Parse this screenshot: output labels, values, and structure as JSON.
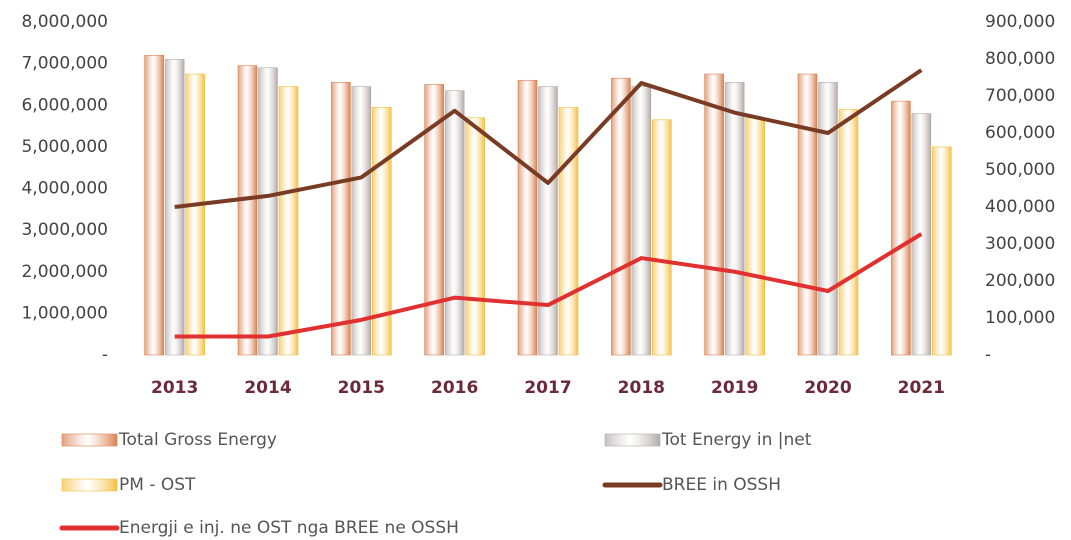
{
  "chart_data": {
    "type": "bar",
    "categories": [
      "2013",
      "2014",
      "2015",
      "2016",
      "2017",
      "2018",
      "2019",
      "2020",
      "2021"
    ],
    "series": [
      {
        "name": "Total Gross Energy",
        "color": "#d9804f",
        "values": [
          7200000,
          6950000,
          6550000,
          6500000,
          6600000,
          6650000,
          6750000,
          6750000,
          6100000
        ]
      },
      {
        "name": "Tot Energy in |net",
        "color": "#b3aaa8",
        "values": [
          7100000,
          6900000,
          6450000,
          6350000,
          6450000,
          6450000,
          6550000,
          6550000,
          5800000
        ]
      },
      {
        "name": "PM - OST",
        "color": "#f3c043",
        "values": [
          6750000,
          6450000,
          5950000,
          5700000,
          5950000,
          5650000,
          5700000,
          5900000,
          5000000
        ]
      },
      {
        "name": "BREE in OSSH",
        "color": "#7a3b24",
        "type": "line",
        "axis": "y2",
        "values": [
          400000,
          430000,
          480000,
          660000,
          465000,
          735000,
          655000,
          600000,
          770000
        ]
      },
      {
        "name": "Energji e inj. ne OST nga BREE ne OSSH",
        "color": "#e03030",
        "type": "line",
        "axis": "y2",
        "values": [
          50000,
          50000,
          95000,
          155000,
          135000,
          262000,
          225000,
          173000,
          327000
        ]
      }
    ],
    "ylim": [
      0,
      8000000
    ],
    "yticks": [
      {
        "value": 0,
        "label": "-"
      },
      {
        "value": 1000000,
        "label": "1,000,000"
      },
      {
        "value": 2000000,
        "label": "2,000,000"
      },
      {
        "value": 3000000,
        "label": "3,000,000"
      },
      {
        "value": 4000000,
        "label": "4,000,000"
      },
      {
        "value": 5000000,
        "label": "5,000,000"
      },
      {
        "value": 6000000,
        "label": "6,000,000"
      },
      {
        "value": 7000000,
        "label": "7,000,000"
      },
      {
        "value": 8000000,
        "label": "8,000,000"
      }
    ],
    "y2lim": [
      0,
      900000
    ],
    "y2ticks": [
      {
        "value": 0,
        "label": "-"
      },
      {
        "value": 100000,
        "label": "100,000"
      },
      {
        "value": 200000,
        "label": "200,000"
      },
      {
        "value": 300000,
        "label": "300,000"
      },
      {
        "value": 400000,
        "label": "400,000"
      },
      {
        "value": 500000,
        "label": "500,000"
      },
      {
        "value": 600000,
        "label": "600,000"
      },
      {
        "value": 700000,
        "label": "700,000"
      },
      {
        "value": 800000,
        "label": "800,000"
      },
      {
        "value": 900000,
        "label": "900,000"
      }
    ],
    "grid": false
  }
}
